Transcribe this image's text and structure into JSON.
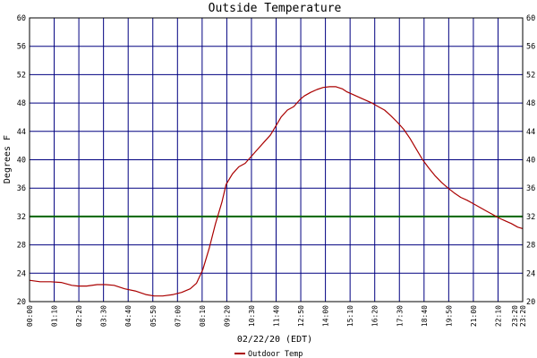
{
  "chart_data": {
    "type": "line",
    "title": "Outside Temperature",
    "xlabel": "02/22/20 (EDT)",
    "ylabel": "Degrees F",
    "ylim": [
      20,
      60
    ],
    "yticks": [
      20,
      24,
      28,
      32,
      36,
      40,
      44,
      48,
      52,
      56,
      60
    ],
    "ytick_labels_right": true,
    "grid": true,
    "grid_color": "#000080",
    "line_color": "#aa0000",
    "reference_line": {
      "y": 32,
      "color": "#006400"
    },
    "xlim_hours": [
      0.0,
      23.333
    ],
    "x_tick_labels": [
      "00:00",
      "01:10",
      "02:20",
      "03:30",
      "04:40",
      "05:50",
      "07:00",
      "08:10",
      "09:20",
      "10:30",
      "11:40",
      "12:50",
      "14:00",
      "15:10",
      "16:20",
      "17:30",
      "18:40",
      "19:50",
      "21:00",
      "22:10",
      "23:20"
    ],
    "x_tick_hours": [
      0,
      1.1667,
      2.3333,
      3.5,
      4.6667,
      5.8333,
      7.0,
      8.1667,
      9.3333,
      10.5,
      11.6667,
      12.8333,
      14.0,
      15.1667,
      16.3333,
      17.5,
      18.6667,
      19.8333,
      21.0,
      22.1667,
      23.3333
    ],
    "extra_x_tick_label": "23:20",
    "legend_position": "bottom",
    "series": [
      {
        "name": "Outdoor Temp",
        "x": [
          0,
          0.5,
          1.0,
          1.5,
          2.0,
          2.3,
          2.7,
          3.2,
          3.6,
          4.0,
          4.5,
          5.0,
          5.5,
          5.9,
          6.3,
          6.8,
          7.2,
          7.6,
          7.9,
          8.2,
          8.5,
          8.8,
          9.1,
          9.3,
          9.6,
          9.9,
          10.2,
          10.5,
          10.8,
          11.1,
          11.4,
          11.7,
          11.9,
          12.2,
          12.5,
          12.8,
          13.0,
          13.3,
          13.6,
          13.9,
          14.2,
          14.5,
          14.8,
          15.0,
          15.3,
          15.6,
          15.9,
          16.2,
          16.5,
          16.8,
          17.1,
          17.4,
          17.7,
          18.0,
          18.3,
          18.6,
          18.9,
          19.2,
          19.5,
          19.8,
          20.1,
          20.4,
          20.7,
          21.0,
          21.3,
          21.6,
          21.9,
          22.2,
          22.5,
          22.8,
          23.1,
          23.333
        ],
        "values": [
          23.0,
          22.8,
          22.8,
          22.7,
          22.3,
          22.2,
          22.2,
          22.4,
          22.4,
          22.3,
          21.8,
          21.5,
          21.0,
          20.8,
          20.8,
          21.0,
          21.3,
          21.8,
          22.6,
          24.5,
          27.5,
          31.0,
          34.0,
          36.5,
          38.0,
          39.0,
          39.5,
          40.5,
          41.5,
          42.5,
          43.5,
          45.0,
          46.0,
          47.0,
          47.5,
          48.5,
          49.0,
          49.5,
          49.9,
          50.2,
          50.3,
          50.3,
          50.0,
          49.6,
          49.2,
          48.8,
          48.4,
          48.0,
          47.5,
          47.0,
          46.2,
          45.3,
          44.3,
          43.0,
          41.5,
          40.0,
          38.8,
          37.7,
          36.8,
          36.0,
          35.3,
          34.7,
          34.3,
          33.8,
          33.3,
          32.8,
          32.3,
          31.8,
          31.4,
          31.0,
          30.5,
          30.3
        ]
      }
    ]
  }
}
